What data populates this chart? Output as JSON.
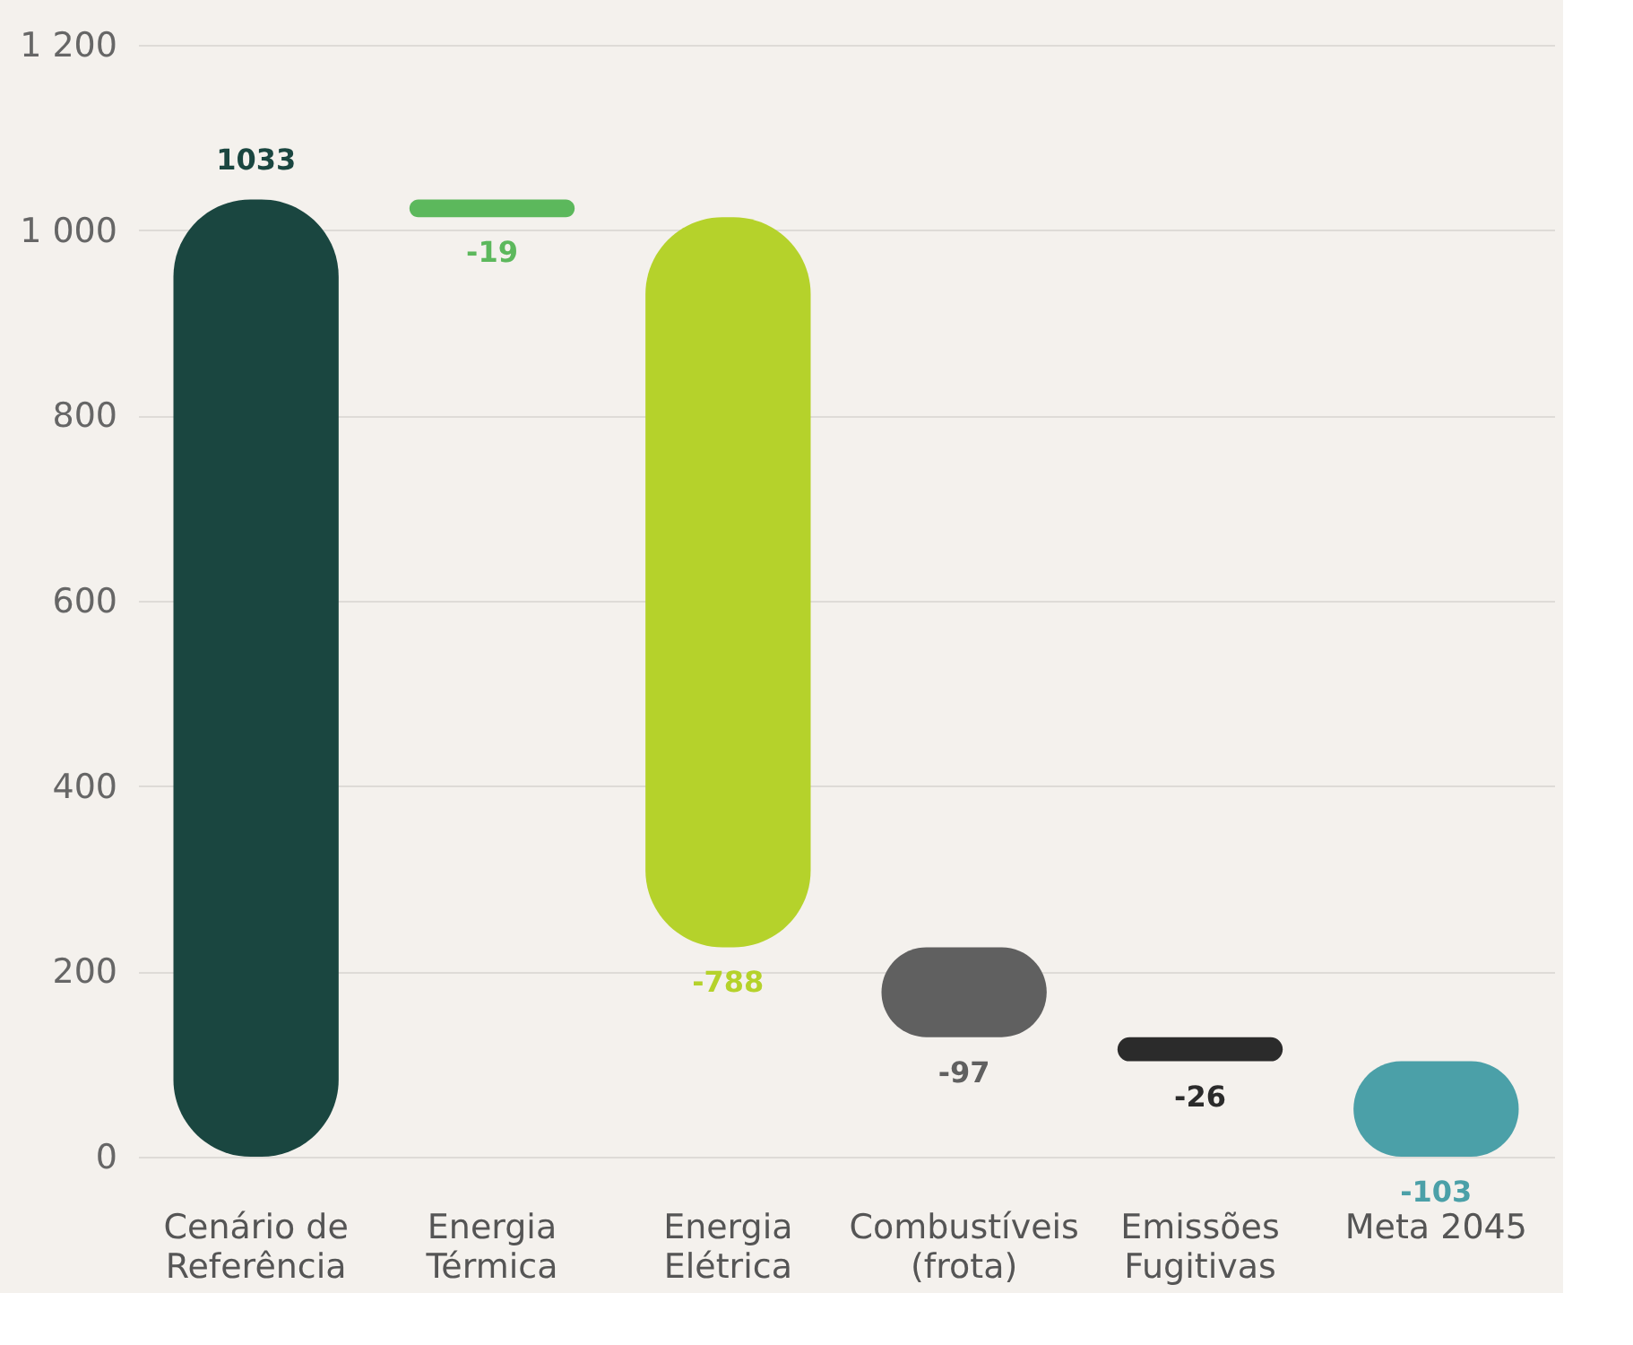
{
  "chart_data": {
    "type": "bar",
    "categories": [
      "Cenário de\nReferência",
      "Energia\nTérmica",
      "Energia\nElétrica",
      "Combustíveis\n(frota)",
      "Emissões\nFugitivas",
      "Meta 2045"
    ],
    "values": [
      1033,
      -19,
      -788,
      -97,
      -26,
      -103
    ],
    "base": [
      0,
      1033,
      1014,
      226,
      129,
      103
    ],
    "colors": [
      "#1a4640",
      "#5cb85c",
      "#b5d22b",
      "#606060",
      "#2b2b2b",
      "#4ba0a8"
    ],
    "ylim": [
      0,
      1200
    ],
    "yticks": [
      0,
      200,
      400,
      600,
      800,
      {
        "value": 1000,
        "label": "1 000"
      },
      {
        "value": 1200,
        "label": "1 200"
      }
    ],
    "grid": "y",
    "data_labels": true
  }
}
